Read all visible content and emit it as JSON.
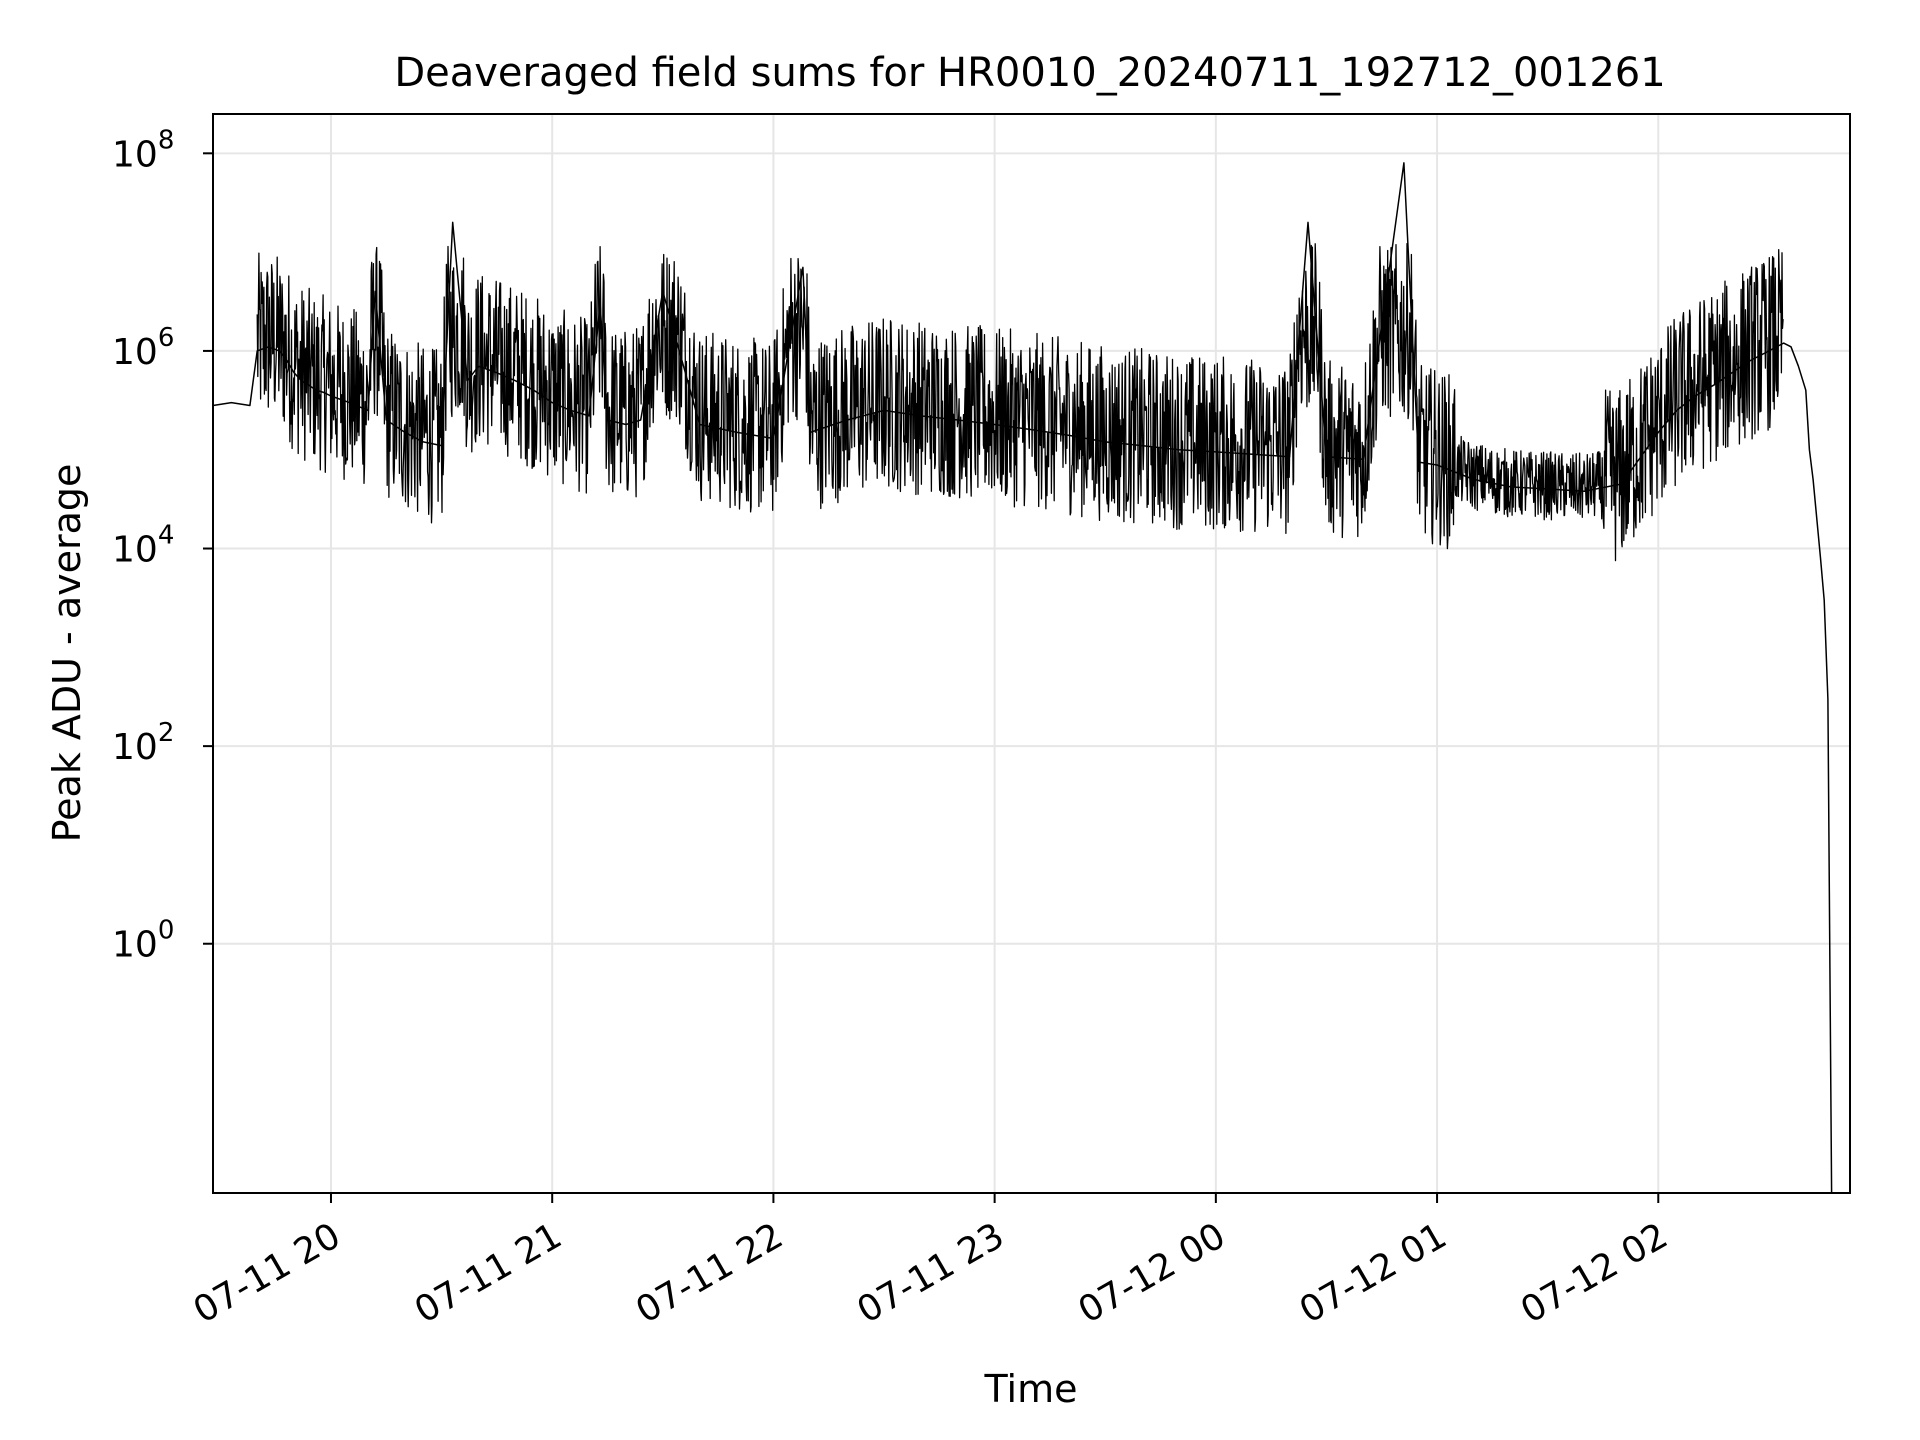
{
  "chart_data": {
    "type": "line",
    "title": "Deaveraged field sums for HR0010_20240711_192712_001261",
    "xlabel": "Time",
    "ylabel": "Peak ADU - average",
    "yscale": "log",
    "x_range": [
      "2024-07-11 19:28",
      "2024-07-12 02:52"
    ],
    "ylim": [
      0.003,
      250000000
    ],
    "x_ticks": [
      {
        "value": "2024-07-11 20:00",
        "label": "07-11 20"
      },
      {
        "value": "2024-07-11 21:00",
        "label": "07-11 21"
      },
      {
        "value": "2024-07-11 22:00",
        "label": "07-11 22"
      },
      {
        "value": "2024-07-11 23:00",
        "label": "07-11 23"
      },
      {
        "value": "2024-07-12 00:00",
        "label": "07-12 00"
      },
      {
        "value": "2024-07-12 01:00",
        "label": "07-12 01"
      },
      {
        "value": "2024-07-12 02:00",
        "label": "07-12 02"
      }
    ],
    "y_ticks": [
      {
        "value": 1,
        "base": "10",
        "exp": "0"
      },
      {
        "value": 100,
        "base": "10",
        "exp": "2"
      },
      {
        "value": 10000,
        "base": "10",
        "exp": "4"
      },
      {
        "value": 1000000,
        "base": "10",
        "exp": "6"
      },
      {
        "value": 100000000,
        "base": "10",
        "exp": "8"
      }
    ],
    "grid": true,
    "line_color": "#000000",
    "grid_color": "#e6e6e6",
    "series": [
      {
        "x": [
          "2024-07-11 19:28",
          "2024-07-11 19:33",
          "2024-07-11 19:38",
          "2024-07-11 19:40",
          "2024-07-11 19:43",
          "2024-07-11 19:46",
          "2024-07-11 19:48",
          "2024-07-11 19:50",
          "2024-07-11 19:52",
          "2024-07-11 19:54",
          "2024-07-11 19:56",
          "2024-07-11 19:58",
          "2024-07-11 20:00",
          "2024-07-11 20:05",
          "2024-07-11 20:10",
          "2024-07-11 20:12",
          "2024-07-11 20:15",
          "2024-07-11 20:20",
          "2024-07-11 20:25",
          "2024-07-11 20:30",
          "2024-07-11 20:33",
          "2024-07-11 20:37",
          "2024-07-11 20:40",
          "2024-07-11 20:45",
          "2024-07-11 20:50",
          "2024-07-11 20:55",
          "2024-07-11 21:00",
          "2024-07-11 21:05",
          "2024-07-11 21:10",
          "2024-07-11 21:13",
          "2024-07-11 21:15",
          "2024-07-11 21:20",
          "2024-07-11 21:24",
          "2024-07-11 21:30",
          "2024-07-11 21:40",
          "2024-07-11 21:50",
          "2024-07-11 22:00",
          "2024-07-11 22:08",
          "2024-07-11 22:10",
          "2024-07-11 22:20",
          "2024-07-11 22:30",
          "2024-07-11 22:40",
          "2024-07-11 22:50",
          "2024-07-11 23:00",
          "2024-07-11 23:10",
          "2024-07-11 23:20",
          "2024-07-11 23:30",
          "2024-07-11 23:40",
          "2024-07-11 23:50",
          "2024-07-12 00:00",
          "2024-07-12 00:10",
          "2024-07-12 00:20",
          "2024-07-12 00:25",
          "2024-07-12 00:30",
          "2024-07-12 00:40",
          "2024-07-12 00:51",
          "2024-07-12 00:55",
          "2024-07-12 01:00",
          "2024-07-12 01:10",
          "2024-07-12 01:20",
          "2024-07-12 01:30",
          "2024-07-12 01:40",
          "2024-07-12 01:50",
          "2024-07-12 02:00",
          "2024-07-12 02:05",
          "2024-07-12 02:10",
          "2024-07-12 02:15",
          "2024-07-12 02:20",
          "2024-07-12 02:25",
          "2024-07-12 02:30",
          "2024-07-12 02:34",
          "2024-07-12 02:36",
          "2024-07-12 02:38",
          "2024-07-12 02:40",
          "2024-07-12 02:41",
          "2024-07-12 02:42",
          "2024-07-12 02:43",
          "2024-07-12 02:44",
          "2024-07-12 02:45",
          "2024-07-12 02:46",
          "2024-07-12 02:47"
        ],
        "values": [
          280000,
          300000,
          280000,
          1000000,
          1100000,
          1000000,
          800000,
          600000,
          500000,
          450000,
          400000,
          380000,
          350000,
          300000,
          250000,
          4000000,
          200000,
          150000,
          120000,
          110000,
          20000000,
          500000,
          700000,
          600000,
          500000,
          400000,
          300000,
          250000,
          220000,
          3000000,
          200000,
          180000,
          200000,
          4000000,
          180000,
          150000,
          130000,
          7000000,
          150000,
          200000,
          250000,
          220000,
          200000,
          180000,
          160000,
          140000,
          120000,
          110000,
          100000,
          95000,
          90000,
          85000,
          20000000,
          85000,
          80000,
          80000000,
          75000,
          70000,
          50000,
          42000,
          40000,
          38000,
          45000,
          150000,
          250000,
          350000,
          450000,
          600000,
          800000,
          1000000,
          1200000,
          1100000,
          700000,
          400000,
          100000,
          50000,
          20000,
          8000,
          3000,
          300,
          0.003
        ]
      }
    ]
  }
}
